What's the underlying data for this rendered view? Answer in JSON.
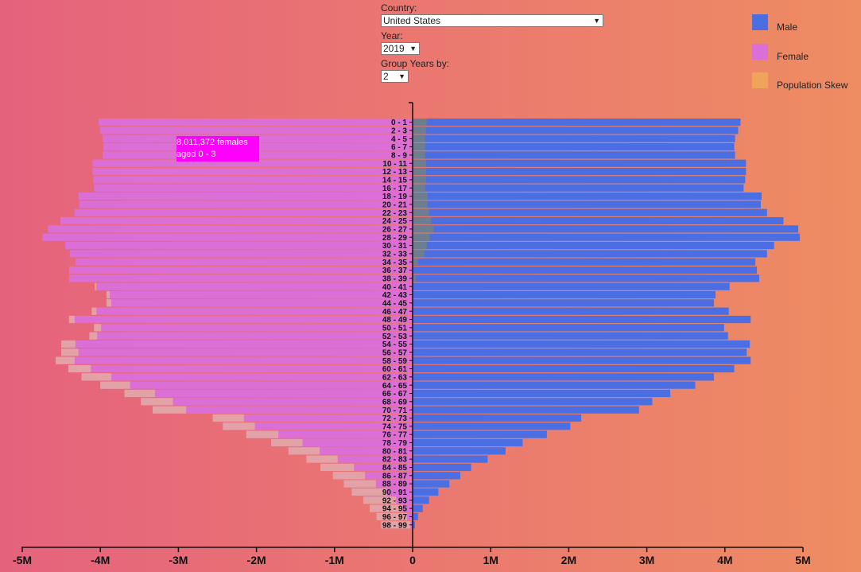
{
  "controls": {
    "country_label": "Country:",
    "country_value": "United States",
    "year_label": "Year:",
    "year_value": "2019",
    "group_label": "Group Years by:",
    "group_value": "2"
  },
  "legend": [
    {
      "label": "Male",
      "color": "#4b6fe3"
    },
    {
      "label": "Female",
      "color": "#dc6fd6"
    },
    {
      "label": "Population Skew",
      "color": "#f0a35a"
    }
  ],
  "tooltip": {
    "line1": "8,011,372 females",
    "line2": "aged 0 - 3"
  },
  "chart_data": {
    "type": "bar",
    "orientation": "horizontal",
    "categories": [
      "0 - 1",
      "2 - 3",
      "4 - 5",
      "6 - 7",
      "8 - 9",
      "10 - 11",
      "12 - 13",
      "14 - 15",
      "16 - 17",
      "18 - 19",
      "20 - 21",
      "22 - 23",
      "24 - 25",
      "26 - 27",
      "28 - 29",
      "30 - 31",
      "32 - 33",
      "34 - 35",
      "36 - 37",
      "38 - 39",
      "40 - 41",
      "42 - 43",
      "44 - 45",
      "46 - 47",
      "48 - 49",
      "50 - 51",
      "52 - 53",
      "54 - 55",
      "56 - 57",
      "58 - 59",
      "60 - 61",
      "62 - 63",
      "64 - 65",
      "66 - 67",
      "68 - 69",
      "70 - 71",
      "72 - 73",
      "74 - 75",
      "76 - 77",
      "78 - 79",
      "80 - 81",
      "82 - 83",
      "84 - 85",
      "86 - 87",
      "88 - 89",
      "90 - 91",
      "92 - 93",
      "94 - 95",
      "96 - 97",
      "98 - 99"
    ],
    "series": [
      {
        "name": "Male",
        "values": [
          4.2,
          4.17,
          4.13,
          4.12,
          4.13,
          4.27,
          4.27,
          4.26,
          4.24,
          4.47,
          4.46,
          4.54,
          4.75,
          4.94,
          4.96,
          4.63,
          4.54,
          4.39,
          4.41,
          4.44,
          4.06,
          3.88,
          3.86,
          4.05,
          4.33,
          3.99,
          4.04,
          4.32,
          4.28,
          4.33,
          4.12,
          3.86,
          3.62,
          3.3,
          3.07,
          2.9,
          2.16,
          2.02,
          1.72,
          1.41,
          1.19,
          0.96,
          0.75,
          0.61,
          0.47,
          0.33,
          0.21,
          0.13,
          0.07,
          0.03
        ]
      },
      {
        "name": "Female",
        "values": [
          4.02,
          4.0,
          3.97,
          3.96,
          3.97,
          4.1,
          4.1,
          4.09,
          4.08,
          4.28,
          4.27,
          4.33,
          4.51,
          4.67,
          4.74,
          4.45,
          4.39,
          4.32,
          4.4,
          4.4,
          4.07,
          3.92,
          3.92,
          4.11,
          4.4,
          4.08,
          4.14,
          4.5,
          4.5,
          4.57,
          4.41,
          4.24,
          4.0,
          3.69,
          3.48,
          3.33,
          2.56,
          2.43,
          2.13,
          1.81,
          1.59,
          1.36,
          1.18,
          1.02,
          0.88,
          0.78,
          0.63,
          0.55,
          0.46,
          0.4
        ]
      },
      {
        "name": "Population Skew",
        "values": [
          -0.18,
          -0.17,
          -0.16,
          -0.16,
          -0.16,
          -0.17,
          -0.17,
          -0.17,
          -0.16,
          -0.19,
          -0.19,
          -0.21,
          -0.24,
          -0.27,
          -0.22,
          -0.18,
          -0.15,
          -0.07,
          -0.01,
          -0.04,
          0.01,
          0.04,
          0.06,
          0.06,
          0.07,
          0.09,
          0.1,
          0.18,
          0.22,
          0.24,
          0.29,
          0.38,
          0.38,
          0.39,
          0.41,
          0.43,
          0.4,
          0.41,
          0.41,
          0.4,
          0.4,
          0.4,
          0.43,
          0.41,
          0.41,
          0.45,
          0.42,
          0.42,
          0.39,
          0.37
        ]
      }
    ],
    "xlim": [
      -5,
      5
    ],
    "x_tick_labels": [
      "-5M",
      "-4M",
      "-3M",
      "-2M",
      "-1M",
      "0",
      "1M",
      "2M",
      "3M",
      "4M",
      "5M"
    ],
    "unit": "millions",
    "legend_position": "top-right"
  }
}
